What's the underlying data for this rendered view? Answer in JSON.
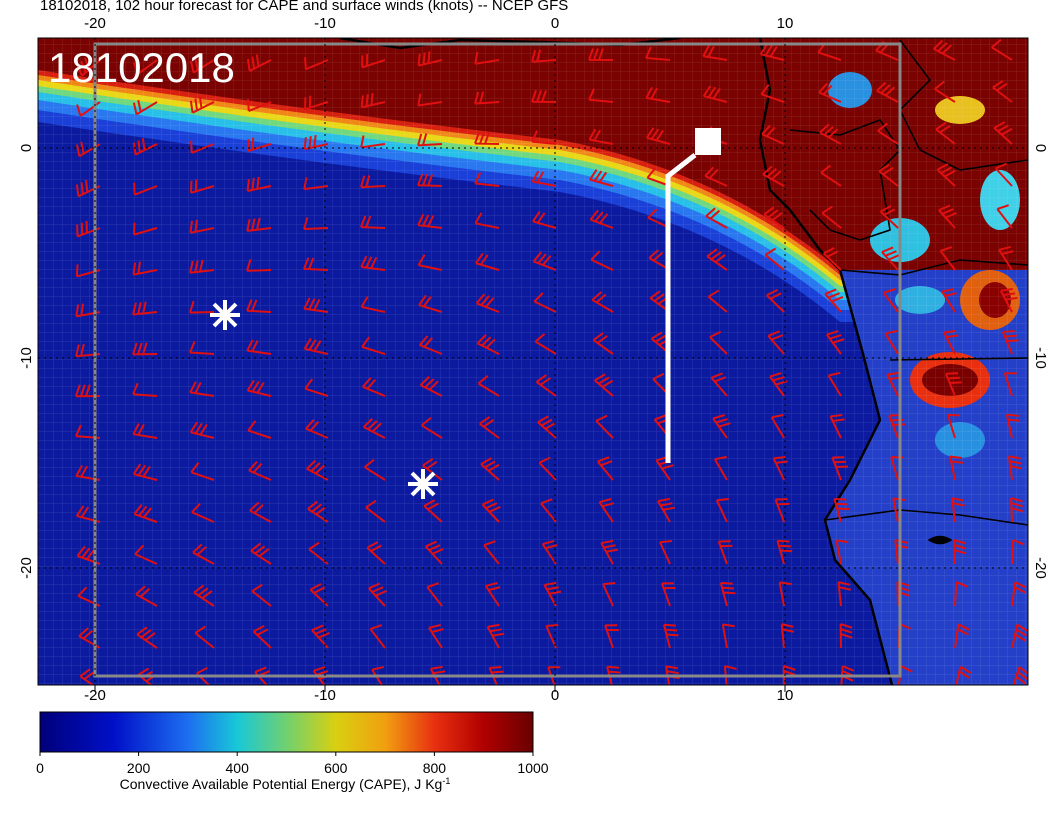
{
  "title": "18102018, 102 hour forecast for CAPE and surface winds (knots) -- NCEP GFS",
  "date_label": "18102018",
  "axes": {
    "x_ticks": [
      -20,
      -10,
      0,
      10
    ],
    "y_ticks": [
      0,
      -10,
      -20
    ]
  },
  "colorbar": {
    "range": [
      0,
      1000
    ],
    "ticks": [
      0,
      200,
      400,
      600,
      800,
      1000
    ],
    "label": "Convective Available Potential Energy (CAPE), J Kg",
    "label_sup": "-1"
  }
}
